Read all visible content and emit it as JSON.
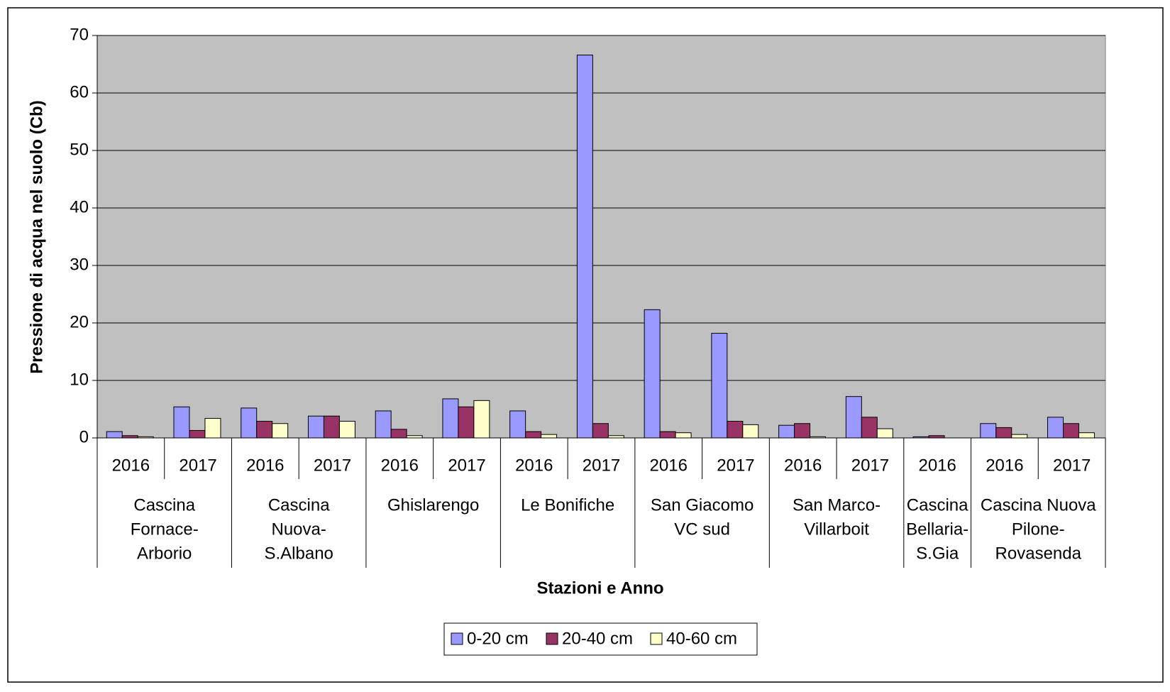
{
  "chart_data": {
    "type": "bar",
    "y_label": "Pressione di acqua nel suolo (Cb)",
    "x_label": "Stazioni e Anno",
    "groups": [
      {
        "label": [
          "Cascina",
          "Fornace-",
          "Arborio"
        ],
        "years": [
          "2016",
          "2017"
        ]
      },
      {
        "label": [
          "Cascina",
          "Nuova-",
          "S.Albano"
        ],
        "years": [
          "2016",
          "2017"
        ]
      },
      {
        "label": [
          "Ghislarengo"
        ],
        "years": [
          "2016",
          "2017"
        ]
      },
      {
        "label": [
          "Le Bonifiche"
        ],
        "years": [
          "2016",
          "2017"
        ]
      },
      {
        "label": [
          "San Giacomo",
          "VC sud"
        ],
        "years": [
          "2016",
          "2017"
        ]
      },
      {
        "label": [
          "San Marco-",
          "Villarboit"
        ],
        "years": [
          "2016",
          "2017"
        ]
      },
      {
        "label": [
          "Cascina",
          "Bellaria-",
          "S.Gia"
        ],
        "years": [
          "2016"
        ]
      },
      {
        "label": [
          "Cascina Nuova",
          "Pilone-",
          "Rovasenda"
        ],
        "years": [
          "2016",
          "2017"
        ]
      }
    ],
    "series": [
      {
        "name": "0-20 cm",
        "color": "#9999ff",
        "values": [
          1.1,
          5.4,
          5.2,
          3.8,
          4.7,
          6.8,
          4.7,
          66.6,
          22.3,
          18.2,
          2.2,
          7.2,
          0.2,
          2.5,
          3.6
        ]
      },
      {
        "name": "20-40 cm",
        "color": "#993366",
        "values": [
          0.4,
          1.3,
          2.9,
          3.8,
          1.5,
          5.4,
          1.1,
          2.5,
          1.1,
          2.9,
          2.5,
          3.6,
          0.4,
          1.8,
          2.5
        ]
      },
      {
        "name": "40-60 cm",
        "color": "#ffffcc",
        "values": [
          0.2,
          3.4,
          2.5,
          2.9,
          0.4,
          6.5,
          0.6,
          0.4,
          0.9,
          2.3,
          0.2,
          1.6,
          null,
          0.6,
          0.9
        ]
      }
    ],
    "ylim": [
      0,
      70
    ],
    "yticks": [
      0,
      10,
      20,
      30,
      40,
      50,
      60,
      70
    ],
    "grid": true,
    "plot_background": "#c0c0c0",
    "legend": "bottom"
  }
}
